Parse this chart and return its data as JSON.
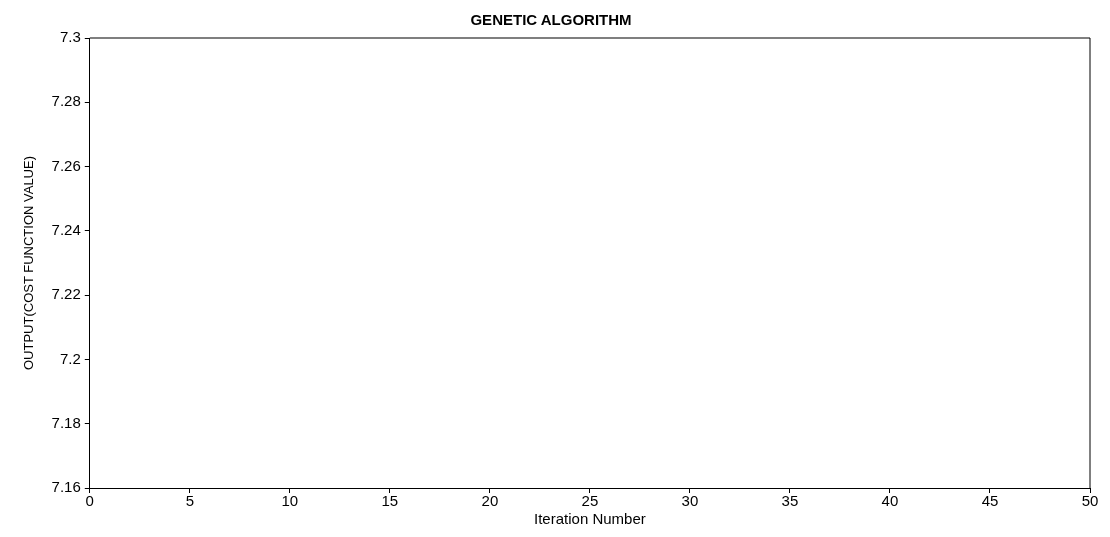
{
  "chart_data": {
    "type": "line",
    "title": "GENETIC ALGORITHM",
    "xlabel": "Iteration Number",
    "ylabel": "OUTPUT(COST FUNCTION VALUE)",
    "x": [
      0,
      50
    ],
    "series": [
      {
        "color": "#000000",
        "values": [
          7.3,
          7.3
        ]
      }
    ],
    "xlim": [
      0,
      50
    ],
    "xticks": [
      0,
      5,
      10,
      15,
      20,
      25,
      30,
      35,
      40,
      45,
      50
    ],
    "ylim": [
      7.16,
      7.3
    ],
    "yticks": [
      7.16,
      7.18,
      7.2,
      7.22,
      7.24,
      7.26,
      7.28,
      7.3
    ],
    "grid": false,
    "legend": false,
    "marker": "none",
    "line_style": "solid"
  }
}
